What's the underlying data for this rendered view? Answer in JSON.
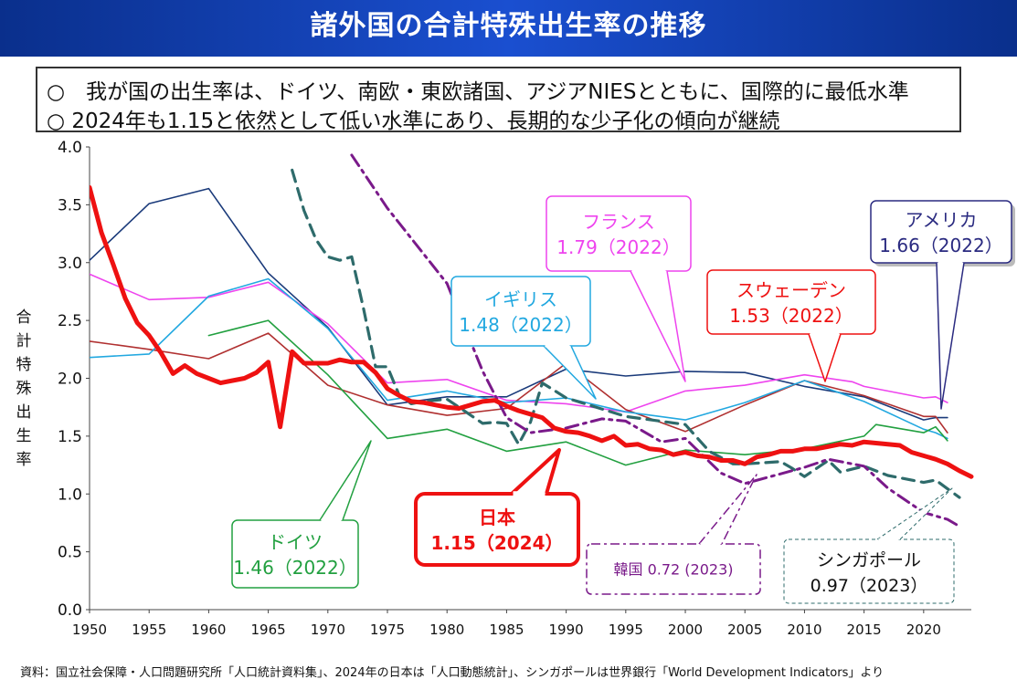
{
  "title": "諸外国の合計特殊出生率の推移",
  "summary": [
    "○　我が国の出生率は、ドイツ、南欧・東欧諸国、アジアNIESとともに、国際的に最低水準",
    "○ 2024年も1.15と依然として低い水準にあり、長期的な少子化の傾向が継続"
  ],
  "source_note": "資料：国立社会保障・人口問題研究所「人口統計資料集」、2024年の日本は「人口動態統計」、シンガポールは世界銀行「World Development Indicators」より",
  "chart_data": {
    "type": "line",
    "ylabel": "合計特殊出生率",
    "xlim": [
      1950,
      2024
    ],
    "ylim": [
      0,
      4.0
    ],
    "x_ticks": [
      "1950",
      "1955",
      "1960",
      "1965",
      "1970",
      "1975",
      "1980",
      "1985",
      "1990",
      "1995",
      "2000",
      "2005",
      "2010",
      "2015",
      "2020"
    ],
    "y_ticks": [
      "0.0",
      "0.5",
      "1.0",
      "1.5",
      "2.0",
      "2.5",
      "3.0",
      "3.5",
      "4.0"
    ],
    "grid": false,
    "series": [
      {
        "name": "日本",
        "color": "#ee1111",
        "style": "thick",
        "points": [
          [
            1950,
            3.65
          ],
          [
            1951,
            3.26
          ],
          [
            1952,
            2.98
          ],
          [
            1953,
            2.69
          ],
          [
            1954,
            2.48
          ],
          [
            1955,
            2.37
          ],
          [
            1956,
            2.22
          ],
          [
            1957,
            2.04
          ],
          [
            1958,
            2.11
          ],
          [
            1959,
            2.04
          ],
          [
            1960,
            2.0
          ],
          [
            1961,
            1.96
          ],
          [
            1962,
            1.98
          ],
          [
            1963,
            2.0
          ],
          [
            1964,
            2.05
          ],
          [
            1965,
            2.14
          ],
          [
            1966,
            1.58
          ],
          [
            1967,
            2.23
          ],
          [
            1968,
            2.13
          ],
          [
            1969,
            2.13
          ],
          [
            1970,
            2.13
          ],
          [
            1971,
            2.16
          ],
          [
            1972,
            2.14
          ],
          [
            1973,
            2.14
          ],
          [
            1974,
            2.05
          ],
          [
            1975,
            1.91
          ],
          [
            1976,
            1.85
          ],
          [
            1977,
            1.8
          ],
          [
            1978,
            1.79
          ],
          [
            1979,
            1.77
          ],
          [
            1980,
            1.75
          ],
          [
            1981,
            1.74
          ],
          [
            1982,
            1.77
          ],
          [
            1983,
            1.8
          ],
          [
            1984,
            1.81
          ],
          [
            1985,
            1.76
          ],
          [
            1986,
            1.72
          ],
          [
            1987,
            1.69
          ],
          [
            1988,
            1.66
          ],
          [
            1989,
            1.57
          ],
          [
            1990,
            1.54
          ],
          [
            1991,
            1.53
          ],
          [
            1992,
            1.5
          ],
          [
            1993,
            1.46
          ],
          [
            1994,
            1.5
          ],
          [
            1995,
            1.42
          ],
          [
            1996,
            1.43
          ],
          [
            1997,
            1.39
          ],
          [
            1998,
            1.38
          ],
          [
            1999,
            1.34
          ],
          [
            2000,
            1.36
          ],
          [
            2001,
            1.33
          ],
          [
            2002,
            1.32
          ],
          [
            2003,
            1.29
          ],
          [
            2004,
            1.29
          ],
          [
            2005,
            1.26
          ],
          [
            2006,
            1.32
          ],
          [
            2007,
            1.34
          ],
          [
            2008,
            1.37
          ],
          [
            2009,
            1.37
          ],
          [
            2010,
            1.39
          ],
          [
            2011,
            1.39
          ],
          [
            2012,
            1.41
          ],
          [
            2013,
            1.43
          ],
          [
            2014,
            1.42
          ],
          [
            2015,
            1.45
          ],
          [
            2016,
            1.44
          ],
          [
            2017,
            1.43
          ],
          [
            2018,
            1.42
          ],
          [
            2019,
            1.36
          ],
          [
            2020,
            1.33
          ],
          [
            2021,
            1.3
          ],
          [
            2022,
            1.26
          ],
          [
            2023,
            1.2
          ],
          [
            2024,
            1.15
          ]
        ]
      },
      {
        "name": "アメリカ",
        "color": "#1a3a7a",
        "style": "solid",
        "points": [
          [
            1950,
            3.02
          ],
          [
            1955,
            3.51
          ],
          [
            1960,
            3.64
          ],
          [
            1965,
            2.91
          ],
          [
            1970,
            2.44
          ],
          [
            1975,
            1.77
          ],
          [
            1980,
            1.84
          ],
          [
            1985,
            1.84
          ],
          [
            1990,
            2.08
          ],
          [
            1995,
            2.02
          ],
          [
            2000,
            2.06
          ],
          [
            2005,
            2.05
          ],
          [
            2010,
            1.93
          ],
          [
            2015,
            1.84
          ],
          [
            2020,
            1.64
          ],
          [
            2021,
            1.66
          ],
          [
            2022,
            1.66
          ]
        ]
      },
      {
        "name": "フランス",
        "color": "#ee44ee",
        "style": "solid",
        "points": [
          [
            1950,
            2.9
          ],
          [
            1955,
            2.68
          ],
          [
            1960,
            2.7
          ],
          [
            1965,
            2.83
          ],
          [
            1970,
            2.47
          ],
          [
            1975,
            1.96
          ],
          [
            1980,
            1.99
          ],
          [
            1985,
            1.81
          ],
          [
            1990,
            1.78
          ],
          [
            1995,
            1.71
          ],
          [
            2000,
            1.89
          ],
          [
            2005,
            1.94
          ],
          [
            2010,
            2.03
          ],
          [
            2014,
            1.97
          ],
          [
            2015,
            1.93
          ],
          [
            2020,
            1.83
          ],
          [
            2021,
            1.84
          ],
          [
            2022,
            1.79
          ]
        ]
      },
      {
        "name": "スウェーデン",
        "color": "#b03030",
        "style": "solid",
        "points": [
          [
            1950,
            2.32
          ],
          [
            1955,
            2.25
          ],
          [
            1960,
            2.17
          ],
          [
            1965,
            2.39
          ],
          [
            1970,
            1.94
          ],
          [
            1975,
            1.77
          ],
          [
            1980,
            1.68
          ],
          [
            1985,
            1.74
          ],
          [
            1990,
            2.13
          ],
          [
            1995,
            1.73
          ],
          [
            2000,
            1.54
          ],
          [
            2005,
            1.77
          ],
          [
            2010,
            1.98
          ],
          [
            2015,
            1.85
          ],
          [
            2020,
            1.67
          ],
          [
            2021,
            1.67
          ],
          [
            2022,
            1.53
          ]
        ]
      },
      {
        "name": "イギリス",
        "color": "#22a8e0",
        "style": "solid",
        "points": [
          [
            1950,
            2.18
          ],
          [
            1955,
            2.21
          ],
          [
            1960,
            2.71
          ],
          [
            1965,
            2.86
          ],
          [
            1970,
            2.43
          ],
          [
            1975,
            1.81
          ],
          [
            1980,
            1.89
          ],
          [
            1985,
            1.79
          ],
          [
            1990,
            1.83
          ],
          [
            1995,
            1.71
          ],
          [
            2000,
            1.64
          ],
          [
            2005,
            1.79
          ],
          [
            2010,
            1.98
          ],
          [
            2015,
            1.8
          ],
          [
            2020,
            1.56
          ],
          [
            2021,
            1.53
          ],
          [
            2022,
            1.48
          ]
        ]
      },
      {
        "name": "ドイツ",
        "color": "#22a040",
        "style": "solid",
        "points": [
          [
            1960,
            2.37
          ],
          [
            1965,
            2.5
          ],
          [
            1970,
            2.03
          ],
          [
            1975,
            1.48
          ],
          [
            1980,
            1.56
          ],
          [
            1985,
            1.37
          ],
          [
            1990,
            1.45
          ],
          [
            1995,
            1.25
          ],
          [
            2000,
            1.38
          ],
          [
            2005,
            1.34
          ],
          [
            2010,
            1.39
          ],
          [
            2015,
            1.5
          ],
          [
            2016,
            1.6
          ],
          [
            2020,
            1.53
          ],
          [
            2021,
            1.58
          ],
          [
            2022,
            1.46
          ]
        ]
      },
      {
        "name": "シンガポール",
        "color": "#2e6b6b",
        "style": "dashed",
        "points": [
          [
            1967,
            3.8
          ],
          [
            1968,
            3.45
          ],
          [
            1969,
            3.2
          ],
          [
            1970,
            3.05
          ],
          [
            1971,
            3.02
          ],
          [
            1972,
            3.05
          ],
          [
            1973,
            2.6
          ],
          [
            1974,
            2.1
          ],
          [
            1975,
            2.1
          ],
          [
            1976,
            1.85
          ],
          [
            1977,
            1.78
          ],
          [
            1978,
            1.8
          ],
          [
            1980,
            1.82
          ],
          [
            1983,
            1.61
          ],
          [
            1984,
            1.62
          ],
          [
            1985,
            1.61
          ],
          [
            1986,
            1.43
          ],
          [
            1987,
            1.62
          ],
          [
            1988,
            1.96
          ],
          [
            1990,
            1.83
          ],
          [
            1995,
            1.67
          ],
          [
            2000,
            1.6
          ],
          [
            2002,
            1.37
          ],
          [
            2004,
            1.26
          ],
          [
            2005,
            1.26
          ],
          [
            2008,
            1.28
          ],
          [
            2009,
            1.22
          ],
          [
            2010,
            1.15
          ],
          [
            2012,
            1.29
          ],
          [
            2013,
            1.19
          ],
          [
            2015,
            1.24
          ],
          [
            2017,
            1.16
          ],
          [
            2020,
            1.1
          ],
          [
            2021,
            1.12
          ],
          [
            2023,
            0.97
          ]
        ]
      },
      {
        "name": "韓国",
        "color": "#7a1a8a",
        "style": "dashdot",
        "points": [
          [
            1972,
            3.93
          ],
          [
            1975,
            3.47
          ],
          [
            1980,
            2.82
          ],
          [
            1983,
            2.06
          ],
          [
            1985,
            1.66
          ],
          [
            1987,
            1.53
          ],
          [
            1990,
            1.57
          ],
          [
            1993,
            1.65
          ],
          [
            1995,
            1.63
          ],
          [
            1998,
            1.45
          ],
          [
            2000,
            1.48
          ],
          [
            2003,
            1.18
          ],
          [
            2005,
            1.09
          ],
          [
            2010,
            1.23
          ],
          [
            2012,
            1.3
          ],
          [
            2015,
            1.24
          ],
          [
            2017,
            1.05
          ],
          [
            2020,
            0.84
          ],
          [
            2021,
            0.81
          ],
          [
            2022,
            0.78
          ],
          [
            2023,
            0.72
          ]
        ]
      }
    ],
    "callouts": [
      {
        "series": "ドイツ",
        "label": "ドイツ",
        "value": "1.46（2022）"
      },
      {
        "series": "日本",
        "label": "日本",
        "value": "1.15（2024）"
      },
      {
        "series": "イギリス",
        "label": "イギリス",
        "value": "1.48（2022）"
      },
      {
        "series": "フランス",
        "label": "フランス",
        "value": "1.79（2022）"
      },
      {
        "series": "スウェーデン",
        "label": "スウェーデン",
        "value": "1.53（2022）"
      },
      {
        "series": "アメリカ",
        "label": "アメリカ",
        "value": "1.66（2022）"
      },
      {
        "series": "韓国",
        "label": "韓国",
        "value": "0.72 (2023)"
      },
      {
        "series": "シンガポール",
        "label": "シンガポール",
        "value": "0.97（2023）"
      }
    ]
  }
}
